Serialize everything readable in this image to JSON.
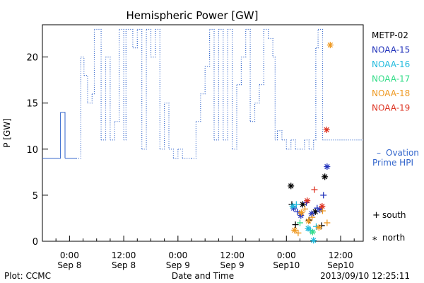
{
  "chart_data": {
    "type": "line",
    "title": "Hemispheric Power [GW]",
    "xlabel": "Date and Time",
    "ylabel": "P [GW]",
    "ylim": [
      0,
      23.5
    ],
    "xlim": [
      -54,
      17
    ],
    "y_ticks": [
      0,
      5,
      10,
      15,
      20
    ],
    "x_ticks": [
      {
        "x": -48,
        "line1": "0:00",
        "line2": "Sep 8"
      },
      {
        "x": -36,
        "line1": "12:00",
        "line2": "Sep 8"
      },
      {
        "x": -24,
        "line1": "0:00",
        "line2": "Sep 9"
      },
      {
        "x": -12,
        "line1": "12:00",
        "line2": "Sep 9"
      },
      {
        "x": 0,
        "line1": "0:00",
        "line2": "Sep10"
      },
      {
        "x": 12,
        "line1": "12:00",
        "line2": "Sep10"
      }
    ],
    "grid": false,
    "legend_position": "right",
    "legend": [
      {
        "label": "METP-02",
        "color": "#000000"
      },
      {
        "label": "NOAA-15",
        "color": "#2233bb"
      },
      {
        "label": "NOAA-16",
        "color": "#22bbdd"
      },
      {
        "label": "NOAA-17",
        "color": "#33dd88"
      },
      {
        "label": "NOAA-18",
        "color": "#ee9922"
      },
      {
        "label": "NOAA-19",
        "color": "#dd3322"
      }
    ],
    "ovation_label_line1": "Ovation",
    "ovation_label_line2": "Prime HPI",
    "ovation_dash": "–",
    "ovation_color": "#3366cc",
    "marker_legend": [
      {
        "symbol": "+",
        "label": "south"
      },
      {
        "symbol": "*",
        "label": "north"
      }
    ],
    "series": [
      {
        "name": "Ovation Prime HPI",
        "style": "step",
        "color": "#3366cc",
        "solid_until": -46.5,
        "points": [
          [
            -54,
            9
          ],
          [
            -50.5,
            9
          ],
          [
            -50,
            14
          ],
          [
            -49,
            9
          ],
          [
            -46.5,
            9
          ],
          [
            -45.5,
            20
          ],
          [
            -44.8,
            18
          ],
          [
            -44,
            15
          ],
          [
            -43,
            16
          ],
          [
            -42.5,
            23
          ],
          [
            -41,
            11
          ],
          [
            -40,
            20
          ],
          [
            -39,
            11
          ],
          [
            -38,
            13
          ],
          [
            -37,
            23
          ],
          [
            -36,
            11
          ],
          [
            -35.5,
            23
          ],
          [
            -34,
            21
          ],
          [
            -33,
            23
          ],
          [
            -32,
            10
          ],
          [
            -31,
            23
          ],
          [
            -30,
            20
          ],
          [
            -29,
            23
          ],
          [
            -28,
            10
          ],
          [
            -27,
            15
          ],
          [
            -26,
            10
          ],
          [
            -25,
            9
          ],
          [
            -24,
            10
          ],
          [
            -23,
            9
          ],
          [
            -21,
            9
          ],
          [
            -20,
            13
          ],
          [
            -19,
            16
          ],
          [
            -18,
            19
          ],
          [
            -17,
            23
          ],
          [
            -16,
            11
          ],
          [
            -15,
            23
          ],
          [
            -14,
            11
          ],
          [
            -13,
            23
          ],
          [
            -12,
            10
          ],
          [
            -11,
            17
          ],
          [
            -10,
            20
          ],
          [
            -9,
            23
          ],
          [
            -8,
            13
          ],
          [
            -7,
            15
          ],
          [
            -6,
            17
          ],
          [
            -5,
            23
          ],
          [
            -4,
            22
          ],
          [
            -3,
            20
          ],
          [
            -2.5,
            11
          ],
          [
            -2,
            12
          ],
          [
            -1,
            11
          ],
          [
            0,
            10
          ],
          [
            1,
            11
          ],
          [
            2,
            10
          ],
          [
            3,
            10
          ],
          [
            4,
            11
          ],
          [
            5,
            10
          ],
          [
            6,
            11
          ],
          [
            6.5,
            21
          ],
          [
            7,
            23
          ],
          [
            8,
            11
          ],
          [
            17,
            11
          ]
        ]
      }
    ],
    "satellite_points": [
      {
        "sat": "METP-02",
        "sym": "+",
        "x": 1.2,
        "y": 4.0
      },
      {
        "sat": "METP-02",
        "sym": "*",
        "x": 1.0,
        "y": 6.0
      },
      {
        "sat": "METP-02",
        "sym": "+",
        "x": 2.0,
        "y": 1.8
      },
      {
        "sat": "METP-02",
        "sym": "*",
        "x": 3.6,
        "y": 4.0
      },
      {
        "sat": "METP-02",
        "sym": "+",
        "x": 5.0,
        "y": 2.3
      },
      {
        "sat": "METP-02",
        "sym": "*",
        "x": 6.4,
        "y": 3.2
      },
      {
        "sat": "METP-02",
        "sym": "+",
        "x": 7.8,
        "y": 1.7
      },
      {
        "sat": "METP-02",
        "sym": "*",
        "x": 8.5,
        "y": 7.0
      },
      {
        "sat": "NOAA-15",
        "sym": "*",
        "x": 1.6,
        "y": 3.6
      },
      {
        "sat": "NOAA-15",
        "sym": "+",
        "x": 2.4,
        "y": 3.2
      },
      {
        "sat": "NOAA-15",
        "sym": "*",
        "x": 3.2,
        "y": 2.8
      },
      {
        "sat": "NOAA-15",
        "sym": "+",
        "x": 4.4,
        "y": 4.2
      },
      {
        "sat": "NOAA-15",
        "sym": "*",
        "x": 5.6,
        "y": 3.0
      },
      {
        "sat": "NOAA-15",
        "sym": "+",
        "x": 6.8,
        "y": 3.6
      },
      {
        "sat": "NOAA-15",
        "sym": "*",
        "x": 7.4,
        "y": 3.4
      },
      {
        "sat": "NOAA-15",
        "sym": "+",
        "x": 8.2,
        "y": 5.0
      },
      {
        "sat": "NOAA-15",
        "sym": "*",
        "x": 9.0,
        "y": 8.1
      },
      {
        "sat": "NOAA-16",
        "sym": "*",
        "x": 1.4,
        "y": 3.8
      },
      {
        "sat": "NOAA-16",
        "sym": "+",
        "x": 2.2,
        "y": 4.0
      },
      {
        "sat": "NOAA-16",
        "sym": "*",
        "x": 4.8,
        "y": 1.4
      },
      {
        "sat": "NOAA-16",
        "sym": "+",
        "x": 5.3,
        "y": 1.2
      },
      {
        "sat": "NOAA-16",
        "sym": "*",
        "x": 6.0,
        "y": 0.1
      },
      {
        "sat": "NOAA-16",
        "sym": "+",
        "x": 6.6,
        "y": 1.6
      },
      {
        "sat": "NOAA-17",
        "sym": "+",
        "x": 3.0,
        "y": 2.0
      },
      {
        "sat": "NOAA-17",
        "sym": "*",
        "x": 5.8,
        "y": 1.0
      },
      {
        "sat": "NOAA-18",
        "sym": "*",
        "x": 1.8,
        "y": 1.2
      },
      {
        "sat": "NOAA-18",
        "sym": "+",
        "x": 2.6,
        "y": 0.9
      },
      {
        "sat": "NOAA-18",
        "sym": "*",
        "x": 3.3,
        "y": 3.1
      },
      {
        "sat": "NOAA-18",
        "sym": "+",
        "x": 4.1,
        "y": 3.5
      },
      {
        "sat": "NOAA-18",
        "sym": "*",
        "x": 4.9,
        "y": 2.2
      },
      {
        "sat": "NOAA-18",
        "sym": "+",
        "x": 5.7,
        "y": 2.6
      },
      {
        "sat": "NOAA-18",
        "sym": "*",
        "x": 7.2,
        "y": 1.5
      },
      {
        "sat": "NOAA-18",
        "sym": "+",
        "x": 8.0,
        "y": 3.3
      },
      {
        "sat": "NOAA-18",
        "sym": "+",
        "x": 9.0,
        "y": 2.0
      },
      {
        "sat": "NOAA-18",
        "sym": "*",
        "x": 9.7,
        "y": 21.3
      },
      {
        "sat": "NOAA-19",
        "sym": "*",
        "x": 4.6,
        "y": 4.4
      },
      {
        "sat": "NOAA-19",
        "sym": "+",
        "x": 6.2,
        "y": 5.6
      },
      {
        "sat": "NOAA-19",
        "sym": "*",
        "x": 7.9,
        "y": 3.8
      },
      {
        "sat": "NOAA-19",
        "sym": "*",
        "x": 8.9,
        "y": 12.1
      }
    ]
  },
  "footer": {
    "left": "Plot: CCMC",
    "center": "Date and Time",
    "right": "2013/09/10 12:25:11"
  }
}
